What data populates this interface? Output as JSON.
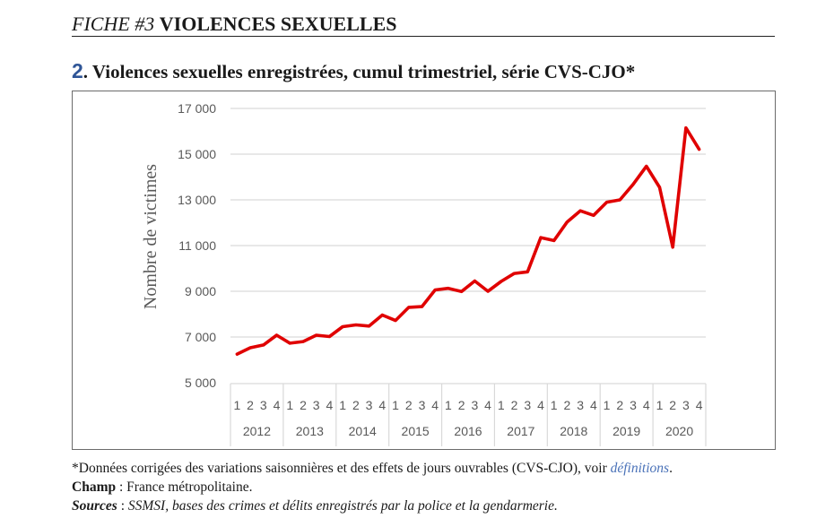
{
  "header": {
    "prefix": "FICHE #3",
    "title": "VIOLENCES SEXUELLES"
  },
  "figure": {
    "number": "2",
    "title": ". Violences sexuelles enregistrées, cumul trimestriel, série CVS-CJO*"
  },
  "colors": {
    "line": "#e00000",
    "figure_number": "#2f5597",
    "gridline": "#d9d9d9",
    "axis_text": "#595959",
    "link": "#4a72b8"
  },
  "chart_data": {
    "type": "line",
    "title": "Violences sexuelles enregistrées, cumul trimestriel, série CVS-CJO*",
    "xlabel": "",
    "ylabel": "Nombre de victimes",
    "ylim": [
      5000,
      17000
    ],
    "yticks": [
      5000,
      7000,
      9000,
      11000,
      13000,
      15000,
      17000
    ],
    "ytick_labels": [
      "5 000",
      "7 000",
      "9 000",
      "11 000",
      "13 000",
      "15 000",
      "17 000"
    ],
    "grid": true,
    "years": [
      "2012",
      "2013",
      "2014",
      "2015",
      "2016",
      "2017",
      "2018",
      "2019",
      "2020"
    ],
    "quarter_labels": [
      "1",
      "2",
      "3",
      "4"
    ],
    "series": [
      {
        "name": "Violences sexuelles enregistrées",
        "values": [
          6250,
          6530,
          6650,
          7080,
          6730,
          6800,
          7080,
          7020,
          7450,
          7530,
          7480,
          7960,
          7720,
          8300,
          8330,
          9060,
          9130,
          8990,
          9450,
          9000,
          9430,
          9780,
          9850,
          11350,
          11220,
          12030,
          12520,
          12320,
          12900,
          13000,
          13680,
          14470,
          13550,
          10930,
          16150,
          15210
        ]
      }
    ]
  },
  "footer": {
    "note": "*Données corrigées des variations saisonnières et des effets de jours ouvrables (CVS-CJO), voir ",
    "note_link": "définitions",
    "note_end": ".",
    "champ_label": "Champ",
    "champ_sep": " : ",
    "champ_value": "France métropolitaine.",
    "sources_label": "Sources",
    "sources_sep": " : ",
    "sources_value": "SSMSI, bases des crimes et délits enregistrés par la police et la gendarmerie."
  }
}
